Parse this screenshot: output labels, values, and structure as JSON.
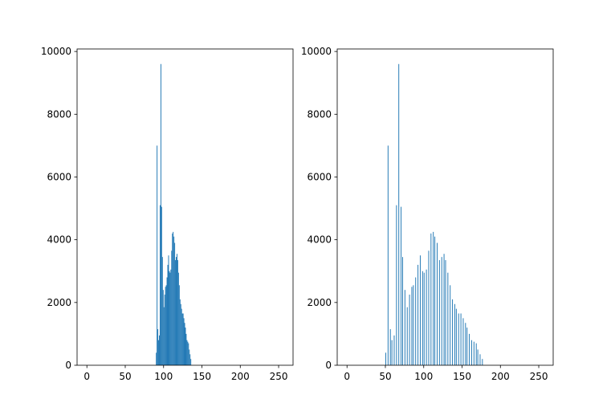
{
  "chart_data": [
    {
      "type": "histogram",
      "color": "#1f77b4",
      "bins": [
        90,
        91,
        92,
        93,
        94,
        95,
        96,
        97,
        98,
        99,
        100,
        101,
        102,
        103,
        104,
        105,
        106,
        107,
        108,
        109,
        110,
        111,
        112,
        113,
        114,
        115,
        116,
        117,
        118,
        119,
        120,
        121,
        122,
        123,
        124,
        125,
        126,
        127,
        128,
        129,
        130,
        131,
        132,
        133,
        134,
        135,
        136
      ],
      "values": [
        400,
        7000,
        1150,
        800,
        950,
        5100,
        9600,
        5050,
        3450,
        2400,
        1850,
        2250,
        2500,
        2550,
        2800,
        3200,
        3500,
        3000,
        2950,
        3050,
        3650,
        4200,
        4250,
        4100,
        3900,
        3350,
        3450,
        3550,
        3350,
        2950,
        2550,
        2100,
        1950,
        1800,
        1650,
        1650,
        1500,
        1350,
        1200,
        1000,
        800,
        750,
        700,
        500,
        350,
        200
      ],
      "xlim": [
        -12.8,
        268.8
      ],
      "xticks": [
        0,
        50,
        100,
        150,
        200,
        250
      ],
      "ylim": [
        0,
        10080
      ],
      "yticks": [
        0,
        2000,
        4000,
        6000,
        8000,
        10000
      ]
    },
    {
      "type": "histogram",
      "color": "#1f77b4",
      "bins": [
        50,
        51,
        52,
        53,
        54,
        55,
        56,
        57,
        58,
        59,
        60,
        61,
        62,
        63,
        64,
        65,
        66,
        67,
        68,
        69,
        70,
        71,
        72,
        73,
        74,
        75,
        76,
        77,
        78,
        79,
        80,
        81,
        82,
        83,
        84,
        85,
        86,
        87,
        88,
        89,
        90,
        91,
        92,
        93,
        94,
        95,
        96,
        97,
        98,
        99,
        100,
        101,
        102,
        103,
        104,
        105,
        106,
        107,
        108,
        109,
        110,
        111,
        112,
        113,
        114,
        115,
        116,
        117,
        118,
        119,
        120,
        121,
        122,
        123,
        124,
        125,
        126,
        127,
        128,
        129,
        130,
        131,
        132,
        133,
        134,
        135,
        136,
        137,
        138,
        139,
        140,
        141,
        142,
        143,
        144,
        145,
        146,
        147,
        148,
        149,
        150,
        151,
        152,
        153,
        154,
        155,
        156,
        157,
        158,
        159,
        160,
        161,
        162,
        163,
        164,
        165,
        166,
        167,
        168,
        169,
        170,
        171,
        172,
        173,
        174,
        175,
        176,
        177
      ],
      "values": [
        400,
        0,
        0,
        7000,
        0,
        0,
        1150,
        0,
        800,
        0,
        0,
        950,
        0,
        0,
        5100,
        0,
        0,
        9600,
        0,
        0,
        5050,
        0,
        3450,
        0,
        0,
        2400,
        0,
        0,
        1850,
        0,
        0,
        2250,
        0,
        0,
        2500,
        0,
        2550,
        0,
        0,
        2800,
        0,
        0,
        3200,
        0,
        0,
        3500,
        0,
        0,
        3000,
        0,
        2950,
        0,
        0,
        3050,
        0,
        0,
        3650,
        0,
        0,
        4200,
        0,
        0,
        4250,
        0,
        4100,
        0,
        0,
        3900,
        0,
        0,
        3350,
        0,
        0,
        3450,
        0,
        0,
        3550,
        0,
        3350,
        0,
        0,
        2950,
        0,
        0,
        2550,
        0,
        0,
        2100,
        0,
        0,
        1950,
        0,
        1800,
        0,
        0,
        1650,
        0,
        0,
        1650,
        0,
        0,
        1500,
        0,
        0,
        1350,
        0,
        1200,
        0,
        0,
        1000,
        0,
        0,
        800,
        0,
        0,
        750,
        0,
        0,
        700,
        0,
        500,
        0,
        0,
        350,
        0,
        0,
        200
      ],
      "xlim": [
        -12.8,
        268.8
      ],
      "xticks": [
        0,
        50,
        100,
        150,
        200,
        250
      ],
      "ylim": [
        0,
        10080
      ],
      "yticks": [
        0,
        2000,
        4000,
        6000,
        8000,
        10000
      ]
    }
  ]
}
